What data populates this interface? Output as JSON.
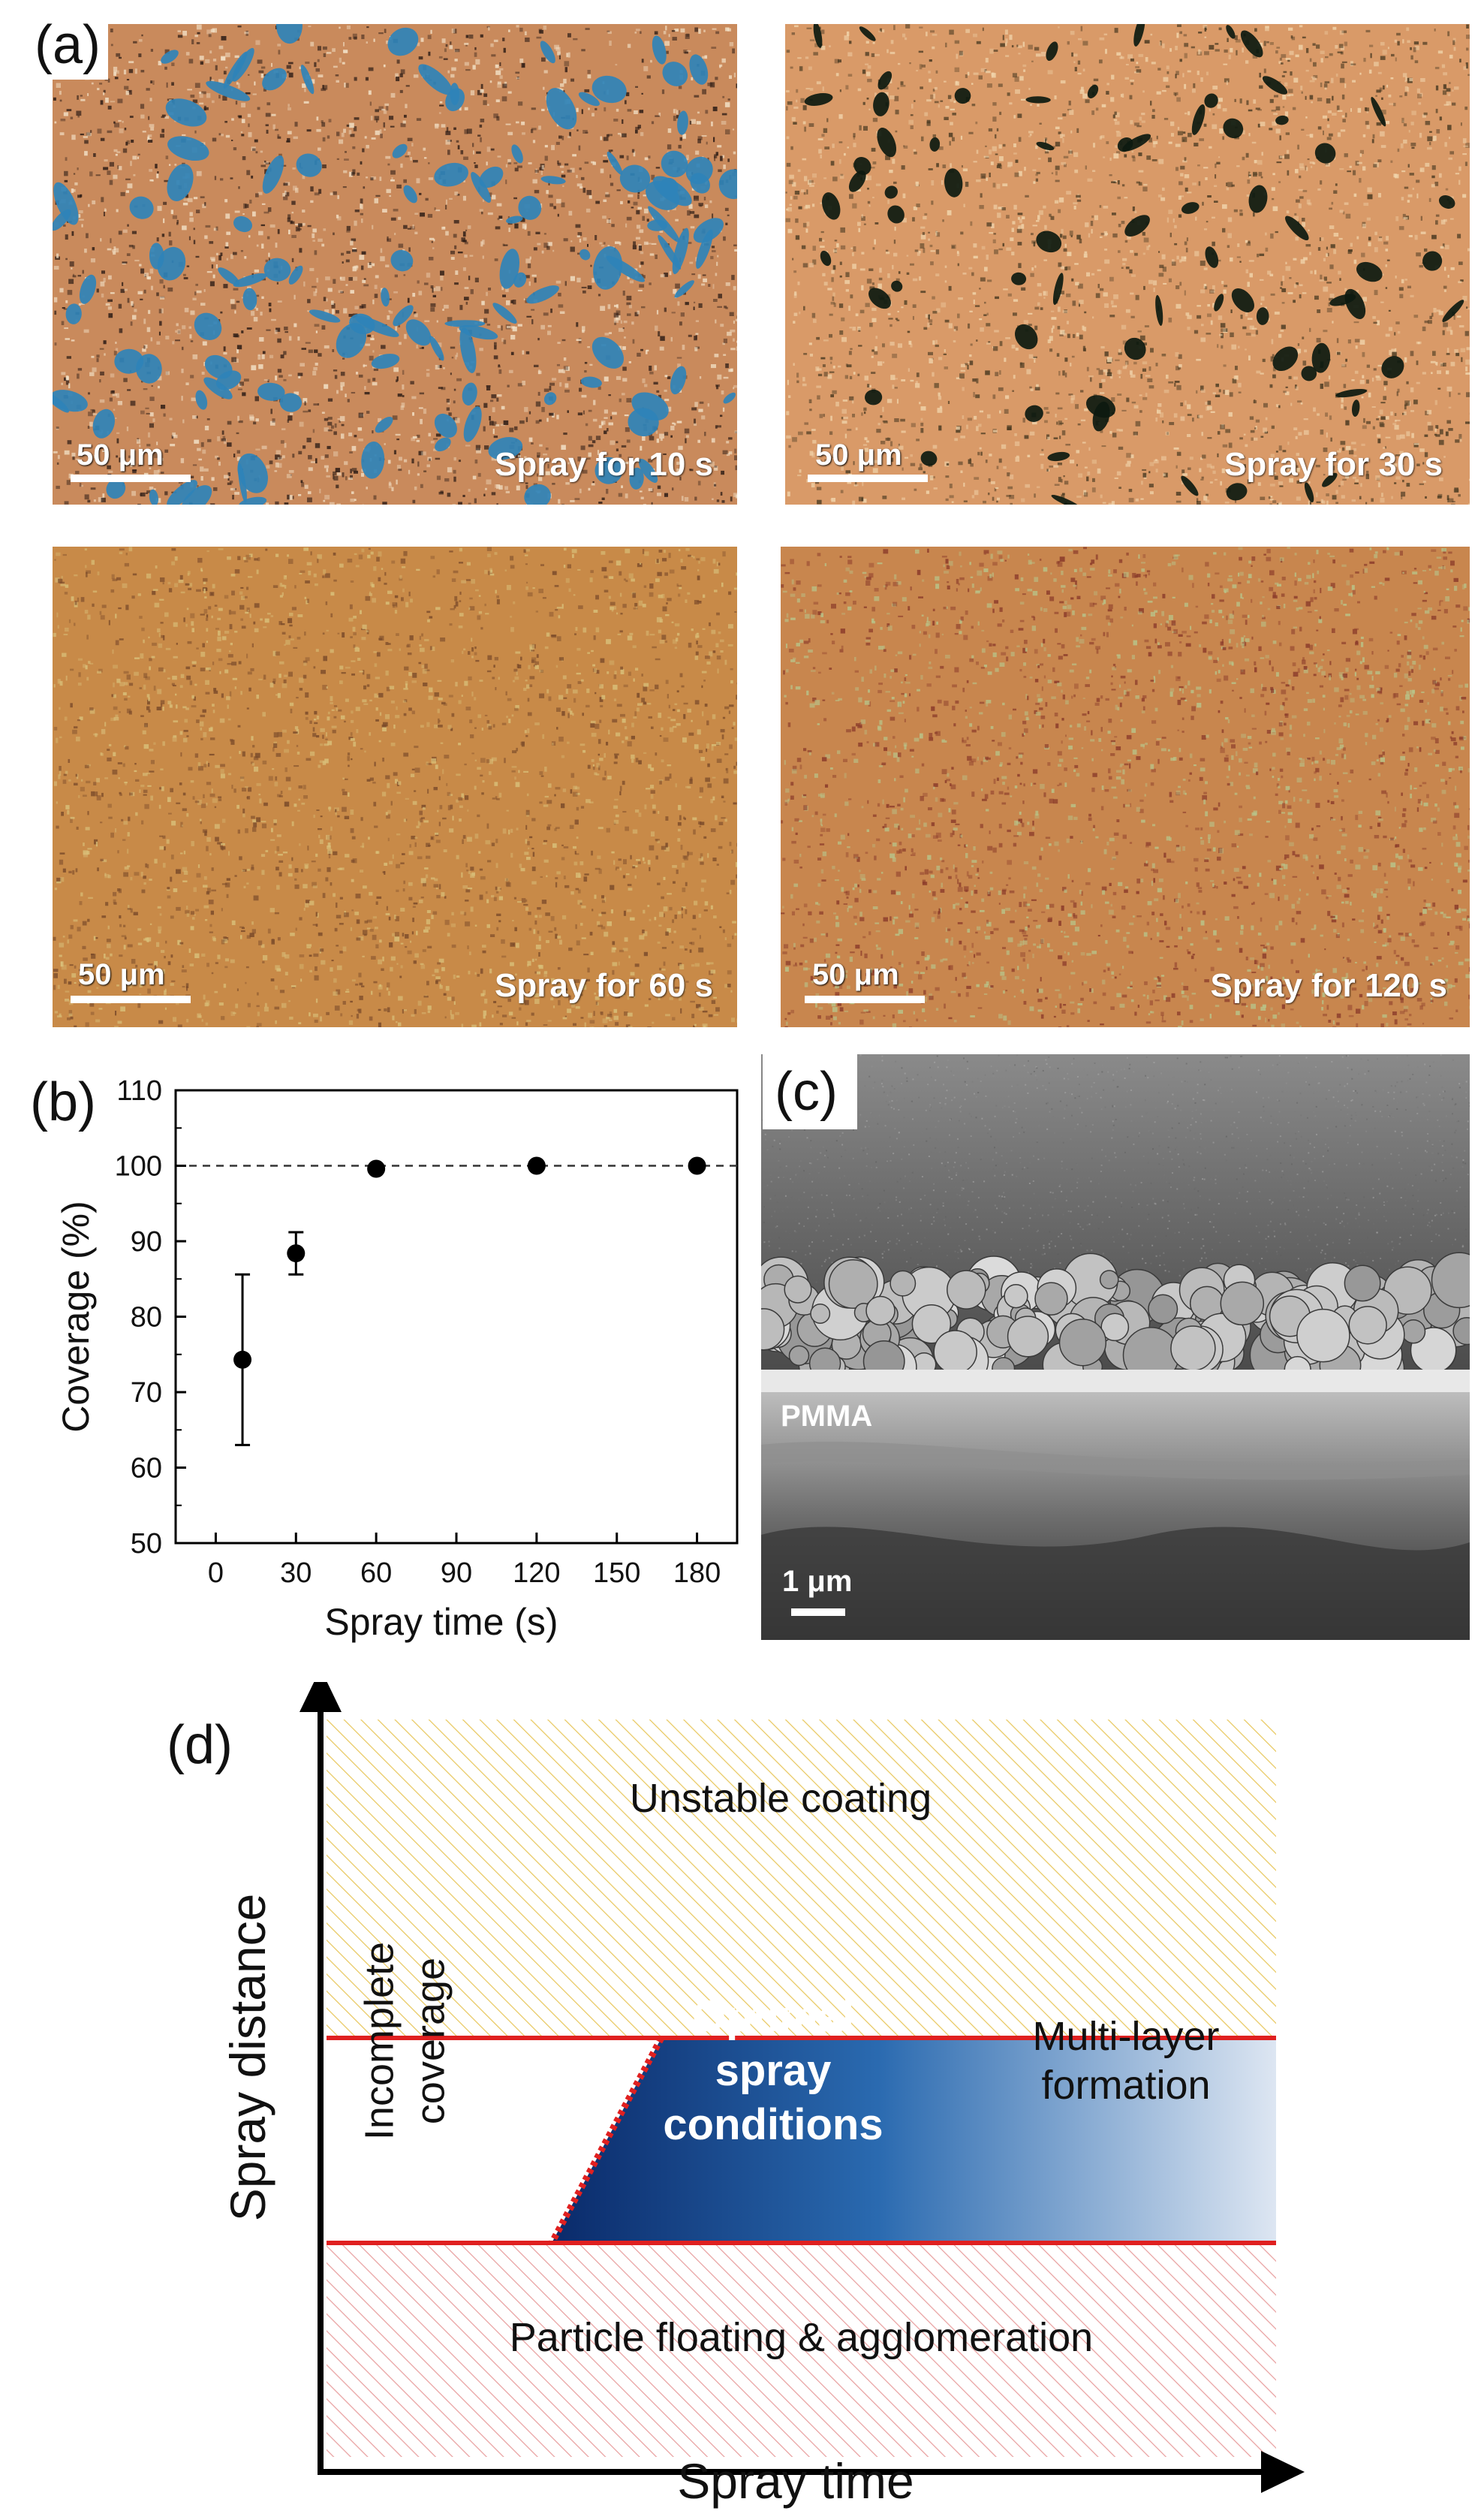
{
  "panel_a": {
    "label": "(a)",
    "images": [
      {
        "caption": "Spray for 10 s",
        "scale": "50 μm",
        "colors": {
          "base": "#c98a5c",
          "speck": "#f3e2c8",
          "dark": "#2a1a14",
          "voids": "#2f83b8"
        }
      },
      {
        "caption": "Spray for 30 s",
        "scale": "50 μm",
        "colors": {
          "base": "#d99a68",
          "speck": "#f1d5ac",
          "dark": "#4a3a22",
          "voids": "#0d1a10"
        }
      },
      {
        "caption": "Spray for 60 s",
        "scale": "50 μm",
        "colors": {
          "base": "#c88a48",
          "speck": "#d9c07a",
          "dark": "#7a4a2a",
          "voids": ""
        }
      },
      {
        "caption": "Spray for 120 s",
        "scale": "50 μm",
        "colors": {
          "base": "#c8864e",
          "speck": "#b8c48a",
          "dark": "#8a3a2a",
          "voids": ""
        }
      }
    ]
  },
  "panel_b": {
    "label": "(b)"
  },
  "panel_c": {
    "label": "(c)",
    "layer_label": "PMMA",
    "scale": "1 μm"
  },
  "panel_d": {
    "label": "(d)",
    "xlabel": "Spray time",
    "ylabel": "Spray distance",
    "regions": {
      "top": "Unstable coating",
      "left_line1": "Incomplete",
      "left_line2": "coverage",
      "optimal_line1": "Optimal",
      "optimal_line2": "spray",
      "optimal_line3": "conditions",
      "right_line1": "Multi-layer",
      "right_line2": "formation",
      "bottom": "Particle floating & agglomeration"
    },
    "colors": {
      "boundary": "#e02020",
      "optimal_dark": "#0a2a6a",
      "optimal_light": "#dde6f2",
      "top_hatch": "#e8c860",
      "bottom_hatch": "#e8a0a0"
    }
  },
  "chart_data": {
    "type": "scatter",
    "xlabel": "Spray time (s)",
    "ylabel": "Coverage (%)",
    "xlim": [
      -15,
      195
    ],
    "ylim": [
      50,
      110
    ],
    "xticks": [
      0,
      30,
      60,
      90,
      120,
      150,
      180
    ],
    "yticks": [
      50,
      60,
      70,
      80,
      90,
      100,
      110
    ],
    "reference_line": 100,
    "series": [
      {
        "x": [
          10,
          30,
          60,
          120,
          180
        ],
        "y": [
          74.3,
          88.4,
          99.6,
          100,
          100
        ],
        "error": [
          11.3,
          2.8,
          0,
          0,
          0
        ]
      }
    ]
  }
}
